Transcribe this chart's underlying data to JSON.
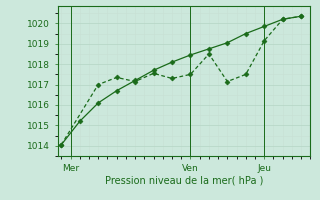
{
  "line_smooth_x": [
    0,
    1,
    2,
    3,
    4,
    5,
    6,
    7,
    8,
    9,
    10,
    11,
    12,
    13
  ],
  "line_smooth_y": [
    1014.05,
    1015.2,
    1016.1,
    1016.7,
    1017.2,
    1017.7,
    1018.1,
    1018.45,
    1018.75,
    1019.05,
    1019.5,
    1019.85,
    1020.2,
    1020.35
  ],
  "line_flat_x": [
    0,
    2,
    3,
    4,
    5,
    6,
    7,
    8,
    9,
    10,
    11,
    12,
    13
  ],
  "line_flat_y": [
    1014.05,
    1017.0,
    1017.35,
    1017.15,
    1017.55,
    1017.3,
    1017.5,
    1018.5,
    1017.15,
    1017.5,
    1019.15,
    1020.2,
    1020.35
  ],
  "xlim": [
    -0.2,
    13.5
  ],
  "ylim": [
    1013.5,
    1020.85
  ],
  "yticks": [
    1014,
    1015,
    1016,
    1017,
    1018,
    1019,
    1020
  ],
  "xtick_positions": [
    0.5,
    7,
    11
  ],
  "xtick_labels": [
    "Mer",
    "Ven",
    "Jeu"
  ],
  "vlines_x": [
    0.5,
    7,
    11
  ],
  "xlabel": "Pression niveau de la mer( hPa )",
  "line_color": "#1a6b1a",
  "bg_color": "#cce8dc",
  "grid_major_color": "#b8d8c8",
  "grid_minor_color": "#c8e0d4",
  "marker": "D",
  "marker_size": 2.5,
  "linewidth": 0.9
}
